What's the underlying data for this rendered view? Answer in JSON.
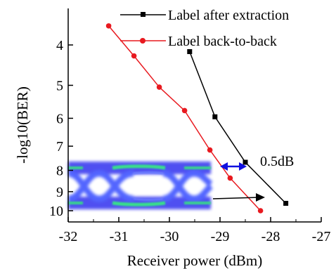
{
  "chart_data": {
    "type": "line",
    "xlabel": "Receiver power (dBm)",
    "ylabel": "-log10(BER)",
    "xlim": [
      -32,
      -27
    ],
    "ylim": [
      3.4,
      10.3
    ],
    "y_inverted": true,
    "y_scale": "log",
    "x_ticks": [
      -32,
      -31,
      -30,
      -29,
      -28,
      -27
    ],
    "x_tick_labels": [
      "-32",
      "-31",
      "-30",
      "-29",
      "-28",
      "-27"
    ],
    "y_ticks": [
      4,
      5,
      6,
      7,
      8,
      9,
      10
    ],
    "y_tick_labels": [
      "4",
      "5",
      "6",
      "7",
      "8",
      "9",
      "10"
    ],
    "legend_position": "top-right",
    "grid": false,
    "series": [
      {
        "name": "Label after extraction",
        "color": "#000000",
        "marker": "square",
        "x": [
          -29.6,
          -29.1,
          -28.5,
          -27.7
        ],
        "y": [
          4.15,
          5.95,
          7.65,
          9.6
        ]
      },
      {
        "name": "Label back-to-back",
        "color": "#e8191f",
        "marker": "circle",
        "x": [
          -31.2,
          -30.7,
          -30.2,
          -29.7,
          -29.2,
          -28.8,
          -28.2
        ],
        "y": [
          3.6,
          4.25,
          5.05,
          5.75,
          7.15,
          8.35,
          10.0
        ]
      }
    ],
    "annotations": [
      {
        "text": "0.5dB",
        "color": "#1010e0",
        "arrow": "double-headed"
      },
      {
        "text": "",
        "arrow": "eye-diagram-to-curve"
      }
    ],
    "inset": {
      "kind": "eye-diagram",
      "colors": [
        "#1a1ab0",
        "#3f6fff",
        "#33e28a"
      ]
    }
  }
}
